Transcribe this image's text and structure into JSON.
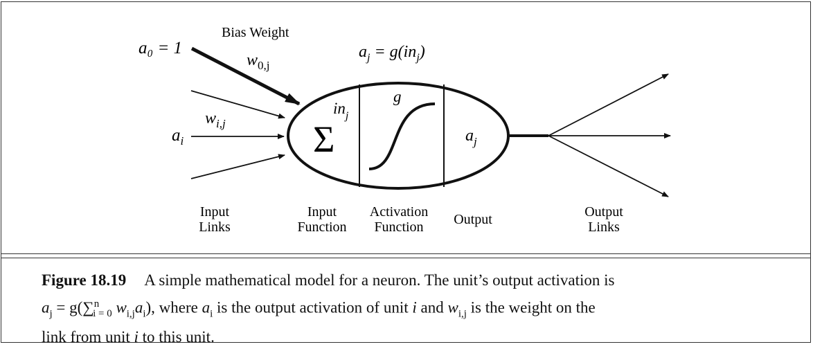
{
  "diagram": {
    "labels": {
      "bias_input": "a₀ = 1",
      "bias_weight_title": "Bias Weight",
      "bias_weight_symbol": "w",
      "bias_weight_sub": "0,j",
      "activation_formula": "a",
      "activation_formula_sub": "j",
      "activation_formula_rest": " = g(in",
      "activation_formula_sub2": "j",
      "activation_formula_end": ")",
      "input_symbol": "a",
      "input_sub": "i",
      "weight_symbol": "w",
      "weight_sub": "i,j",
      "sum_symbol": "Σ",
      "in_symbol": "in",
      "in_sub": "j",
      "g_symbol": "g",
      "output_symbol": "a",
      "output_sub": "j"
    },
    "bottom_labels": {
      "input_links_1": "Input",
      "input_links_2": "Links",
      "input_function_1": "Input",
      "input_function_2": "Function",
      "activation_function_1": "Activation",
      "activation_function_2": "Function",
      "output": "Output",
      "output_links_1": "Output",
      "output_links_2": "Links"
    }
  },
  "caption": {
    "figure_number": "Figure 18.19",
    "line1": "A simple mathematical model for a neuron. The unit’s output activation is",
    "formula_a": "a",
    "formula_a_sub": "j",
    "formula_mid": " = g(",
    "formula_sum": "∑",
    "formula_sum_sup": "n",
    "formula_sum_sub": "i = 0",
    "formula_w": " w",
    "formula_w_sub": "i,j",
    "formula_ai": "a",
    "formula_ai_sub": "i",
    "formula_close": ")",
    "text_where": ", where ",
    "where_a": "a",
    "where_a_sub": "i",
    "text_is_output": " is the output activation of unit ",
    "unit_i": "i",
    "text_and": " and ",
    "and_w": "w",
    "and_w_sub": "i,j",
    "text_weight": " is the weight on the",
    "line3_pre": "link from unit ",
    "line3_i": "i",
    "line3_post": " to this unit."
  }
}
